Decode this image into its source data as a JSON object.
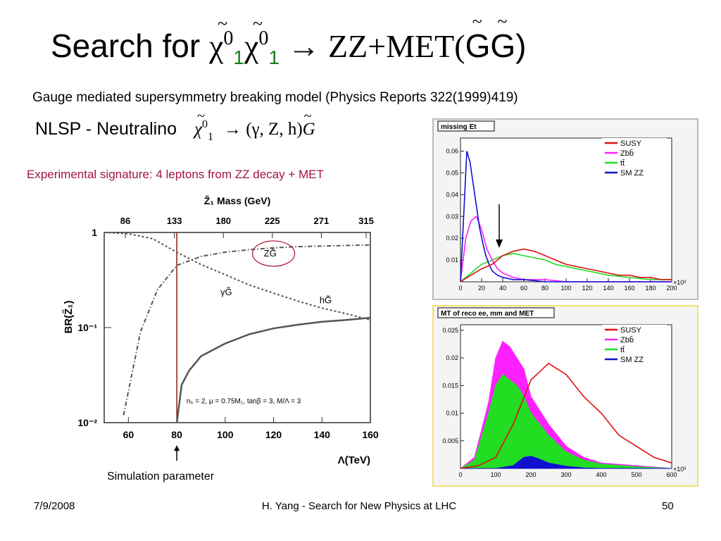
{
  "slide": {
    "title_prefix": "Search for ",
    "title_chi": "χ",
    "title_tilde": "~",
    "title_sup": "0",
    "title_sub": "1",
    "title_arrow": "→",
    "title_rest": "ZZ+MET(",
    "title_g": "G",
    "title_end": ")",
    "subtitle": "Gauge mediated supersymmetry breaking model  (Physics Reports 322(1999)419)",
    "nlsp_label": "NLSP - Neutralino",
    "nlsp_formula": "→ (γ, Z, h)",
    "signature": "Experimental signature: 4 leptons from ZZ decay + MET",
    "sim_param": "Simulation parameter",
    "footer_date": "7/9/2008",
    "footer_center": "H. Yang - Search for New Physics at LHC",
    "page_number": "50"
  },
  "colors": {
    "signature": "#a0153e",
    "susy": "#e01010",
    "zbb": "#ff20ff",
    "tt": "#22dd22",
    "smzz": "#1010d0",
    "panel_border": "#f0e070",
    "circle": "#b01030"
  },
  "chart_data": [
    {
      "type": "line",
      "title": "Z̃₁ Mass (GeV)",
      "xlabel": "Λ(TeV)",
      "ylabel": "BR(Z̃₁)",
      "xlim": [
        50,
        160
      ],
      "ylim": [
        0.01,
        1
      ],
      "log_y": true,
      "x_ticks": [
        "60",
        "80",
        "100",
        "120",
        "140",
        "160"
      ],
      "top_ticks": [
        "86",
        "133",
        "180",
        "225",
        "271",
        "315"
      ],
      "y_ticks": [
        "10⁻²",
        "10⁻¹",
        "1"
      ],
      "vertical_marker_x": 80,
      "annotation": "n₅ = 2,  μ = 0.75M₁,  tanβ = 3,  M/Λ = 3",
      "series": [
        {
          "name": "γG̃",
          "x": [
            50,
            60,
            70,
            80,
            90,
            100,
            110,
            120,
            130,
            140,
            150,
            160
          ],
          "y": [
            1.0,
            0.97,
            0.86,
            0.62,
            0.46,
            0.36,
            0.28,
            0.23,
            0.19,
            0.16,
            0.14,
            0.12
          ]
        },
        {
          "name": "ZG̃",
          "x": [
            58,
            65,
            72,
            80,
            90,
            100,
            110,
            120,
            130,
            140,
            150,
            160
          ],
          "y": [
            0.012,
            0.09,
            0.25,
            0.45,
            0.56,
            0.62,
            0.66,
            0.69,
            0.71,
            0.72,
            0.73,
            0.74
          ]
        },
        {
          "name": "hG̃",
          "x": [
            80,
            82,
            85,
            90,
            100,
            110,
            120,
            130,
            140,
            150,
            160
          ],
          "y": [
            0.01,
            0.025,
            0.035,
            0.05,
            0.068,
            0.085,
            0.098,
            0.107,
            0.115,
            0.12,
            0.127
          ]
        }
      ]
    },
    {
      "type": "line",
      "title": "missing Et",
      "x_ticks": [
        "0",
        "20",
        "40",
        "60",
        "80",
        "100",
        "120",
        "140",
        "160",
        "180",
        "200"
      ],
      "y_ticks": [
        "0.01",
        "0.02",
        "0.03",
        "0.04",
        "0.05",
        "0.06"
      ],
      "x_multiplier": "×10³",
      "xlim": [
        0,
        200
      ],
      "ylim": [
        0,
        0.066
      ],
      "series": [
        {
          "name": "SUSY",
          "x": [
            0,
            10,
            20,
            30,
            40,
            50,
            60,
            70,
            80,
            90,
            100,
            110,
            120,
            130,
            140,
            150,
            160,
            170,
            180,
            190,
            200
          ],
          "y": [
            0,
            0.003,
            0.006,
            0.008,
            0.012,
            0.014,
            0.015,
            0.014,
            0.012,
            0.01,
            0.008,
            0.007,
            0.006,
            0.005,
            0.004,
            0.003,
            0.003,
            0.002,
            0.002,
            0.001,
            0.001
          ]
        },
        {
          "name": "Zbb̄",
          "x": [
            0,
            5,
            10,
            15,
            20,
            25,
            30,
            35,
            40,
            50,
            60,
            80,
            100,
            140,
            200
          ],
          "y": [
            0,
            0.02,
            0.028,
            0.03,
            0.024,
            0.015,
            0.01,
            0.006,
            0.004,
            0.002,
            0.001,
            0.001,
            0,
            0,
            0
          ]
        },
        {
          "name": "tt̄",
          "x": [
            0,
            10,
            20,
            30,
            40,
            50,
            60,
            70,
            80,
            90,
            100,
            120,
            140,
            160,
            180,
            200
          ],
          "y": [
            0,
            0.004,
            0.008,
            0.01,
            0.012,
            0.013,
            0.012,
            0.011,
            0.01,
            0.008,
            0.007,
            0.005,
            0.003,
            0.002,
            0.001,
            0.001
          ]
        },
        {
          "name": "SM ZZ",
          "x": [
            0,
            3,
            6,
            9,
            12,
            15,
            18,
            21,
            24,
            27,
            30,
            35,
            40,
            50,
            60,
            80,
            100,
            200
          ],
          "y": [
            0,
            0.03,
            0.06,
            0.055,
            0.045,
            0.035,
            0.025,
            0.018,
            0.012,
            0.008,
            0.005,
            0.003,
            0.002,
            0.001,
            0.001,
            0,
            0,
            0
          ]
        }
      ]
    },
    {
      "type": "area",
      "title": "MT of reco ee, mm and MET",
      "x_ticks": [
        "0",
        "100",
        "200",
        "300",
        "400",
        "500",
        "600"
      ],
      "y_ticks": [
        "0.005",
        "0.01",
        "0.015",
        "0.02",
        "0.025"
      ],
      "x_multiplier": "×10³",
      "xlim": [
        0,
        600
      ],
      "ylim": [
        0,
        0.026
      ],
      "series": [
        {
          "name": "SUSY",
          "x": [
            0,
            50,
            100,
            150,
            200,
            250,
            300,
            350,
            400,
            450,
            500,
            550,
            600
          ],
          "y": [
            0,
            0.0005,
            0.002,
            0.008,
            0.016,
            0.019,
            0.017,
            0.013,
            0.01,
            0.006,
            0.004,
            0.002,
            0.001
          ]
        },
        {
          "name": "Zbb̄",
          "x": [
            0,
            40,
            80,
            100,
            120,
            140,
            160,
            180,
            200,
            250,
            300,
            350,
            400,
            500,
            600
          ],
          "y": [
            0,
            0.002,
            0.012,
            0.02,
            0.023,
            0.022,
            0.02,
            0.018,
            0.013,
            0.008,
            0.004,
            0.002,
            0.001,
            0.0005,
            0
          ]
        },
        {
          "name": "tt̄",
          "x": [
            0,
            40,
            80,
            100,
            120,
            140,
            160,
            180,
            200,
            250,
            300,
            350,
            400,
            500,
            600
          ],
          "y": [
            0,
            0.0015,
            0.01,
            0.015,
            0.017,
            0.016,
            0.015,
            0.013,
            0.01,
            0.006,
            0.003,
            0.0015,
            0.0008,
            0.0003,
            0
          ]
        },
        {
          "name": "SM ZZ",
          "x": [
            0,
            100,
            150,
            170,
            180,
            200,
            220,
            250,
            300,
            350,
            400,
            600
          ],
          "y": [
            0,
            0,
            0.0005,
            0.0015,
            0.002,
            0.0022,
            0.0018,
            0.001,
            0.0004,
            0.0001,
            0,
            0
          ]
        }
      ]
    }
  ]
}
